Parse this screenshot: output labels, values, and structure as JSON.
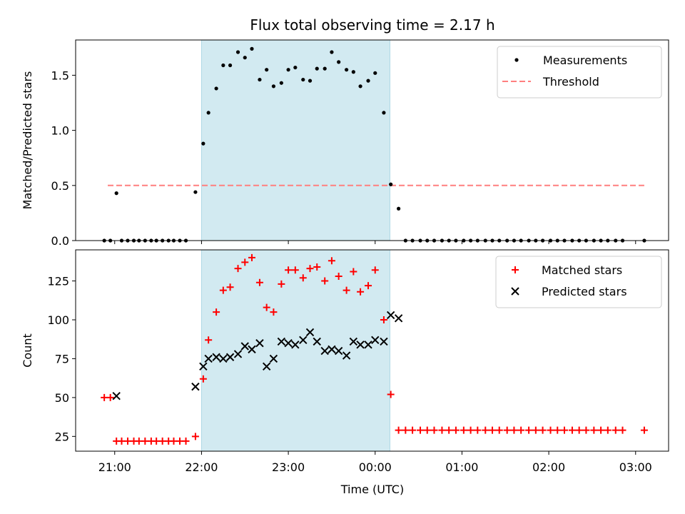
{
  "chart_data": {
    "title": "Flux total observing time = 2.17 h",
    "xlabel": "Time (UTC)",
    "x_ticks": [
      "21:00",
      "22:00",
      "23:00",
      "00:00",
      "01:00",
      "02:00",
      "03:00"
    ],
    "x_tick_hours": [
      21,
      22,
      23,
      24,
      25,
      26,
      27
    ],
    "xlim_hours": [
      20.55,
      27.38
    ],
    "observing_window_hours": [
      22.0,
      24.17
    ],
    "colors": {
      "window": "#add8e6",
      "matched": "#ff0000",
      "predicted": "#000000",
      "threshold": "#ff7f7f",
      "measurements": "#000000"
    },
    "panels": [
      {
        "type": "scatter",
        "ylabel": "Matched/Predicted stars",
        "ylim": [
          0,
          1.82
        ],
        "y_ticks": [
          0.0,
          0.5,
          1.0,
          1.5
        ],
        "y_tick_labels": [
          "0.0",
          "0.5",
          "1.0",
          "1.5"
        ],
        "legend_position": "upper-right",
        "threshold": {
          "name": "Threshold",
          "y": 0.5,
          "x_range_hours": [
            20.92,
            27.1
          ]
        },
        "series": [
          {
            "name": "Measurements",
            "marker": "dot",
            "points": [
              [
                20.88,
                0.0
              ],
              [
                20.95,
                0.0
              ],
              [
                21.02,
                0.43
              ],
              [
                21.08,
                0.0
              ],
              [
                21.15,
                0.0
              ],
              [
                21.22,
                0.0
              ],
              [
                21.28,
                0.0
              ],
              [
                21.35,
                0.0
              ],
              [
                21.42,
                0.0
              ],
              [
                21.48,
                0.0
              ],
              [
                21.55,
                0.0
              ],
              [
                21.62,
                0.0
              ],
              [
                21.68,
                0.0
              ],
              [
                21.75,
                0.0
              ],
              [
                21.82,
                0.0
              ],
              [
                21.93,
                0.44
              ],
              [
                22.02,
                0.88
              ],
              [
                22.08,
                1.16
              ],
              [
                22.17,
                1.38
              ],
              [
                22.25,
                1.59
              ],
              [
                22.33,
                1.59
              ],
              [
                22.42,
                1.71
              ],
              [
                22.5,
                1.66
              ],
              [
                22.58,
                1.74
              ],
              [
                22.67,
                1.46
              ],
              [
                22.75,
                1.55
              ],
              [
                22.83,
                1.4
              ],
              [
                22.92,
                1.43
              ],
              [
                23.0,
                1.55
              ],
              [
                23.08,
                1.57
              ],
              [
                23.17,
                1.46
              ],
              [
                23.25,
                1.45
              ],
              [
                23.33,
                1.56
              ],
              [
                23.42,
                1.56
              ],
              [
                23.5,
                1.71
              ],
              [
                23.58,
                1.62
              ],
              [
                23.67,
                1.55
              ],
              [
                23.75,
                1.53
              ],
              [
                23.83,
                1.4
              ],
              [
                23.92,
                1.45
              ],
              [
                24.0,
                1.52
              ],
              [
                24.1,
                1.16
              ],
              [
                24.18,
                0.51
              ],
              [
                24.27,
                0.29
              ],
              [
                24.35,
                0.0
              ],
              [
                24.43,
                0.0
              ],
              [
                24.52,
                0.0
              ],
              [
                24.6,
                0.0
              ],
              [
                24.68,
                0.0
              ],
              [
                24.77,
                0.0
              ],
              [
                24.85,
                0.0
              ],
              [
                24.93,
                0.0
              ],
              [
                25.02,
                0.0
              ],
              [
                25.1,
                0.0
              ],
              [
                25.18,
                0.0
              ],
              [
                25.27,
                0.0
              ],
              [
                25.35,
                0.0
              ],
              [
                25.43,
                0.0
              ],
              [
                25.52,
                0.0
              ],
              [
                25.6,
                0.0
              ],
              [
                25.68,
                0.0
              ],
              [
                25.77,
                0.0
              ],
              [
                25.85,
                0.0
              ],
              [
                25.93,
                0.0
              ],
              [
                26.02,
                0.0
              ],
              [
                26.1,
                0.0
              ],
              [
                26.18,
                0.0
              ],
              [
                26.27,
                0.0
              ],
              [
                26.35,
                0.0
              ],
              [
                26.43,
                0.0
              ],
              [
                26.52,
                0.0
              ],
              [
                26.6,
                0.0
              ],
              [
                26.68,
                0.0
              ],
              [
                26.77,
                0.0
              ],
              [
                26.85,
                0.0
              ],
              [
                27.1,
                0.0
              ]
            ]
          }
        ]
      },
      {
        "type": "scatter",
        "ylabel": "Count",
        "ylim": [
          15.5,
          145
        ],
        "y_ticks": [
          25,
          50,
          75,
          100,
          125
        ],
        "y_tick_labels": [
          "25",
          "50",
          "75",
          "100",
          "125"
        ],
        "legend_position": "upper-right",
        "series": [
          {
            "name": "Matched stars",
            "marker": "plus",
            "points": [
              [
                20.88,
                50
              ],
              [
                20.95,
                50
              ],
              [
                21.02,
                22
              ],
              [
                21.08,
                22
              ],
              [
                21.15,
                22
              ],
              [
                21.22,
                22
              ],
              [
                21.28,
                22
              ],
              [
                21.35,
                22
              ],
              [
                21.42,
                22
              ],
              [
                21.48,
                22
              ],
              [
                21.55,
                22
              ],
              [
                21.62,
                22
              ],
              [
                21.68,
                22
              ],
              [
                21.75,
                22
              ],
              [
                21.82,
                22
              ],
              [
                21.93,
                25
              ],
              [
                22.02,
                62
              ],
              [
                22.08,
                87
              ],
              [
                22.17,
                105
              ],
              [
                22.25,
                119
              ],
              [
                22.33,
                121
              ],
              [
                22.42,
                133
              ],
              [
                22.5,
                137
              ],
              [
                22.58,
                140
              ],
              [
                22.67,
                124
              ],
              [
                22.75,
                108
              ],
              [
                22.83,
                105
              ],
              [
                22.92,
                123
              ],
              [
                23.0,
                132
              ],
              [
                23.08,
                132
              ],
              [
                23.17,
                127
              ],
              [
                23.25,
                133
              ],
              [
                23.33,
                134
              ],
              [
                23.42,
                125
              ],
              [
                23.5,
                138
              ],
              [
                23.58,
                128
              ],
              [
                23.67,
                119
              ],
              [
                23.75,
                131
              ],
              [
                23.83,
                118
              ],
              [
                23.92,
                122
              ],
              [
                24.0,
                132
              ],
              [
                24.1,
                100
              ],
              [
                24.18,
                52
              ],
              [
                24.27,
                29
              ],
              [
                24.35,
                29
              ],
              [
                24.43,
                29
              ],
              [
                24.52,
                29
              ],
              [
                24.6,
                29
              ],
              [
                24.68,
                29
              ],
              [
                24.77,
                29
              ],
              [
                24.85,
                29
              ],
              [
                24.93,
                29
              ],
              [
                25.02,
                29
              ],
              [
                25.1,
                29
              ],
              [
                25.18,
                29
              ],
              [
                25.27,
                29
              ],
              [
                25.35,
                29
              ],
              [
                25.43,
                29
              ],
              [
                25.52,
                29
              ],
              [
                25.6,
                29
              ],
              [
                25.68,
                29
              ],
              [
                25.77,
                29
              ],
              [
                25.85,
                29
              ],
              [
                25.93,
                29
              ],
              [
                26.02,
                29
              ],
              [
                26.1,
                29
              ],
              [
                26.18,
                29
              ],
              [
                26.27,
                29
              ],
              [
                26.35,
                29
              ],
              [
                26.43,
                29
              ],
              [
                26.52,
                29
              ],
              [
                26.6,
                29
              ],
              [
                26.68,
                29
              ],
              [
                26.77,
                29
              ],
              [
                26.85,
                29
              ],
              [
                27.1,
                29
              ]
            ]
          },
          {
            "name": "Predicted stars",
            "marker": "x",
            "points": [
              [
                21.02,
                51
              ],
              [
                21.93,
                57
              ],
              [
                22.02,
                70
              ],
              [
                22.08,
                75
              ],
              [
                22.17,
                76
              ],
              [
                22.25,
                75
              ],
              [
                22.33,
                76
              ],
              [
                22.42,
                78
              ],
              [
                22.5,
                83
              ],
              [
                22.58,
                81
              ],
              [
                22.67,
                85
              ],
              [
                22.75,
                70
              ],
              [
                22.83,
                75
              ],
              [
                22.92,
                86
              ],
              [
                23.0,
                85
              ],
              [
                23.08,
                84
              ],
              [
                23.17,
                87
              ],
              [
                23.25,
                92
              ],
              [
                23.33,
                86
              ],
              [
                23.42,
                80
              ],
              [
                23.5,
                81
              ],
              [
                23.58,
                80
              ],
              [
                23.67,
                77
              ],
              [
                23.75,
                86
              ],
              [
                23.83,
                84
              ],
              [
                23.92,
                84
              ],
              [
                24.0,
                87
              ],
              [
                24.1,
                86
              ],
              [
                24.18,
                103
              ],
              [
                24.27,
                101
              ]
            ]
          }
        ]
      }
    ]
  }
}
